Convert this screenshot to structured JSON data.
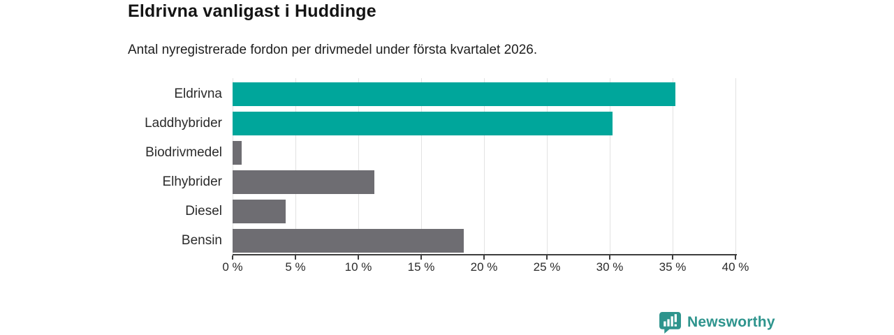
{
  "header": {
    "title": "Eldrivna vanligast i Huddinge",
    "subtitle": "Antal nyregistrerade fordon per drivmedel under första kvartalet 2026."
  },
  "chart_data": {
    "type": "bar",
    "orientation": "horizontal",
    "title": "Eldrivna vanligast i Huddinge",
    "subtitle": "Antal nyregistrerade fordon per drivmedel under första kvartalet 2026.",
    "categories": [
      "Eldrivna",
      "Laddhybrider",
      "Biodrivmedel",
      "Elhybrider",
      "Diesel",
      "Bensin"
    ],
    "values": [
      35.2,
      30.2,
      0.7,
      11.3,
      4.2,
      18.4
    ],
    "unit": "%",
    "xlabel": "",
    "ylabel": "",
    "xlim": [
      0,
      40
    ],
    "x_ticks": [
      0,
      5,
      10,
      15,
      20,
      25,
      30,
      35,
      40
    ],
    "x_tick_labels": [
      "0 %",
      "5 %",
      "10 %",
      "15 %",
      "20 %",
      "25 %",
      "30 %",
      "35 %",
      "40 %"
    ],
    "grid": "vertical",
    "legend": "none",
    "bar_colors": [
      "#00a69b",
      "#00a69b",
      "#6e6d72",
      "#6e6d72",
      "#6e6d72",
      "#6e6d72"
    ],
    "accent_color": "#00a69b",
    "muted_color": "#6e6d72",
    "gridline_color": "#e2e2e2",
    "axis_color": "#3d3d3d"
  },
  "footer": {
    "brand": "Newsworthy",
    "brand_color": "#2e948d",
    "logo_icon": "newsworthy-bar-chart-bubble-icon"
  }
}
